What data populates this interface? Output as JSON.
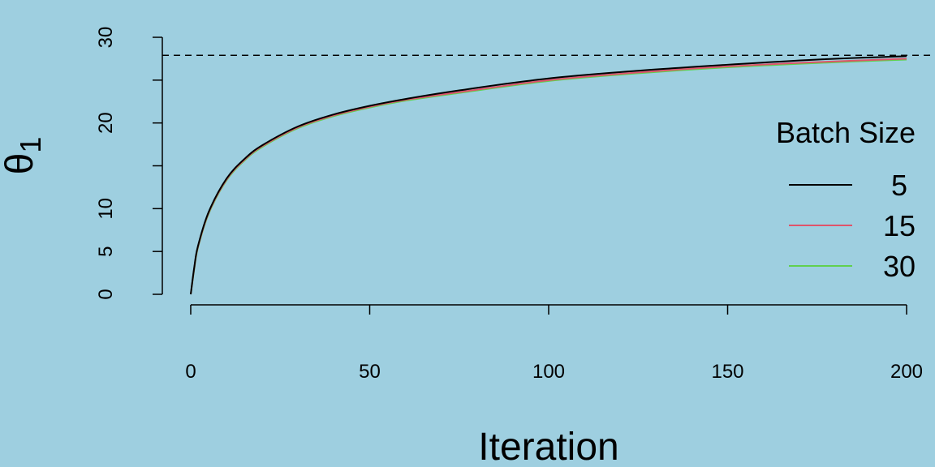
{
  "chart_data": {
    "type": "line",
    "title": "",
    "xlabel": "Iteration",
    "ylabel": "θ",
    "ylabel_subscript": "1",
    "xlim": [
      0,
      200
    ],
    "ylim": [
      0,
      30
    ],
    "x_ticks": [
      0,
      50,
      100,
      150,
      200
    ],
    "x_tick_labels": [
      "0",
      "50",
      "100",
      "150",
      "200"
    ],
    "y_ticks": [
      0,
      5,
      10,
      15,
      20,
      25,
      30
    ],
    "y_tick_labels": [
      "0",
      "5",
      "10",
      "",
      "20",
      "",
      "30"
    ],
    "reference_line": {
      "y": 27.9,
      "style": "dashed",
      "color": "#000000"
    },
    "legend": {
      "title": "Batch Size",
      "position": "right"
    },
    "x": [
      0,
      1,
      2,
      5,
      10,
      15,
      20,
      30,
      40,
      50,
      60,
      75,
      100,
      125,
      150,
      175,
      200
    ],
    "series": [
      {
        "name": "5",
        "color": "#000000",
        "values": [
          0,
          3.2,
          5.6,
          9.6,
          13.5,
          15.8,
          17.4,
          19.6,
          21.0,
          22.0,
          22.8,
          23.8,
          25.2,
          26.1,
          26.8,
          27.4,
          27.8
        ]
      },
      {
        "name": "15",
        "color": "#df536b",
        "values": [
          0,
          3.1,
          5.5,
          9.5,
          13.4,
          15.7,
          17.3,
          19.5,
          20.9,
          21.9,
          22.7,
          23.6,
          25.0,
          25.9,
          26.6,
          27.1,
          27.5
        ]
      },
      {
        "name": "30",
        "color": "#61d04f",
        "values": [
          0,
          3.0,
          5.4,
          9.4,
          13.3,
          15.6,
          17.2,
          19.4,
          20.8,
          21.8,
          22.6,
          23.5,
          24.9,
          25.8,
          26.5,
          27.0,
          27.4
        ]
      }
    ]
  }
}
